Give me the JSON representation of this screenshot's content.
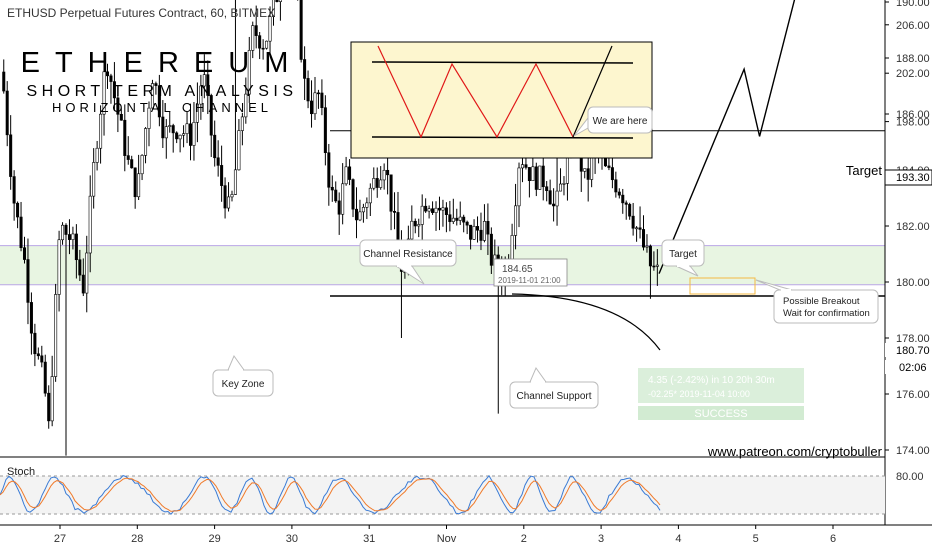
{
  "chart_data": {
    "type": "candlestick",
    "header": "ETHUSD Perpetual Futures Contract, 60, BITMEX",
    "title": "ETHEREUM",
    "subtitle1": "SHORT TERM ANALYSIS",
    "subtitle2": "HORIZONTAL CHANNEL",
    "website": "www.patreon.com/cryptobuller",
    "y_ticks": [
      "174.00",
      "176.00",
      "178.00",
      "180.00",
      "182.00",
      "184.00",
      "186.00",
      "188.00",
      "190.00",
      "194.00",
      "198.00",
      "202.00",
      "206.00"
    ],
    "x_ticks": [
      "27",
      "28",
      "29",
      "30",
      "31",
      "Nov",
      "2",
      "3",
      "4",
      "5",
      "6"
    ],
    "price_labels": {
      "target": "193.30",
      "current": "180.70",
      "countdown": "02:06"
    },
    "annotations": {
      "target_text": "Target",
      "target_callout": "Target",
      "channel_resistance": "Channel Resistance",
      "channel_support": "Channel Support",
      "key_zone": "Key Zone",
      "we_are_here": "We are here",
      "breakout_line1": "Possible Breakout",
      "breakout_line2": "Wait for confirmation",
      "price_box_value": "184.65",
      "price_box_date": "2019-11-01 21:00",
      "measure_line1": "4.35 (-2.42%) in 10 20h 30m",
      "measure_line2": "-02.25* 2019-11-04 10:00",
      "success": "SUCCESS"
    },
    "levels": {
      "target": 193.3,
      "resistance": 185.4,
      "key_zone_top": 181.3,
      "key_zone_bottom": 179.9,
      "support": 179.5
    },
    "ohlc": [],
    "stoch": {
      "label": "Stoch",
      "tick": "80.00"
    }
  },
  "colors": {
    "bull": "#ffffff",
    "bear": "#000000",
    "projection": "#000000",
    "key_zone": "#e8f5e2",
    "inset_bg": "#fdf6cf",
    "inset_zigzag": "#e01818",
    "stoch_k": "#3a7bd5",
    "stoch_d": "#f07a2a",
    "target_box": "#f5b942"
  }
}
